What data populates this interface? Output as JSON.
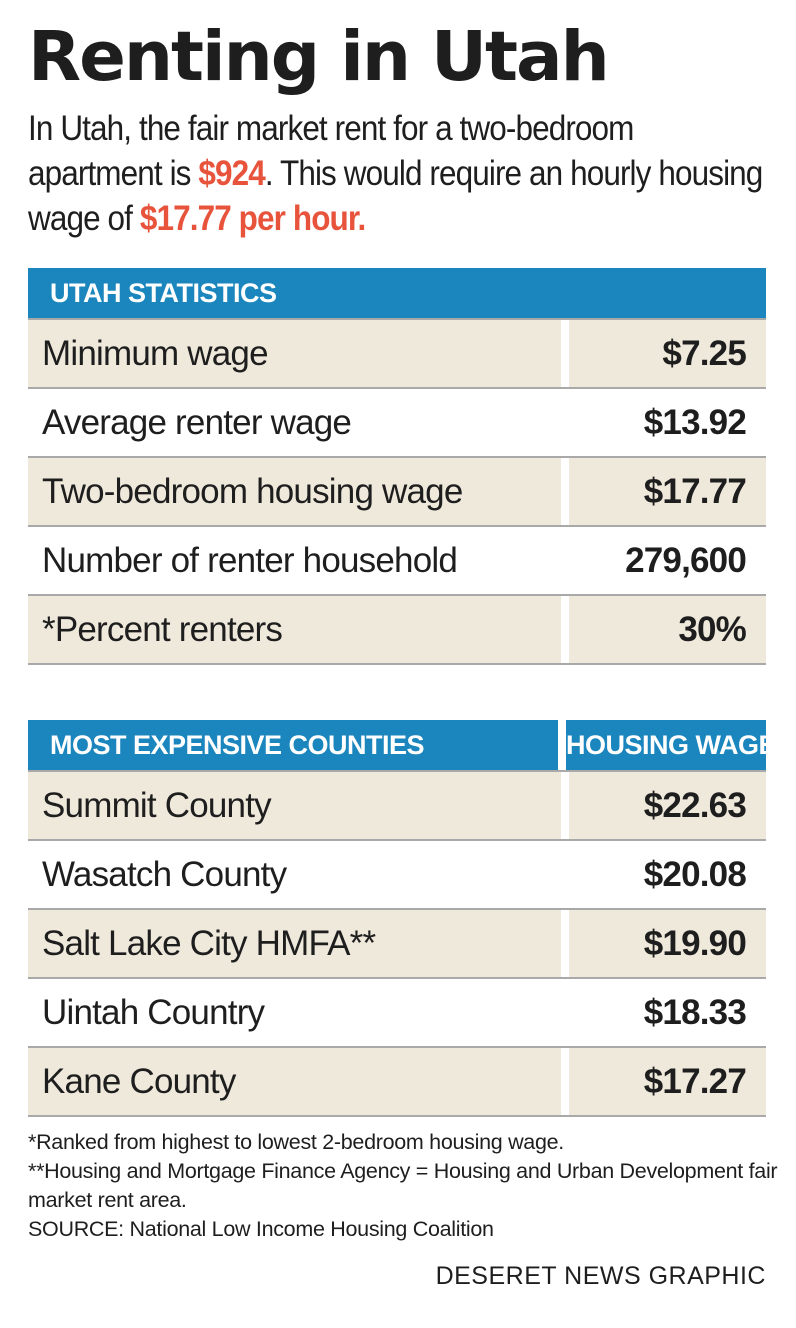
{
  "title": "Renting in Utah",
  "intro": {
    "part1": "In Utah, the fair market rent for a two-bedroom apartment is ",
    "rent": "$924",
    "part2": ". This would require an hourly housing wage of ",
    "wage": "$17.77 per hour."
  },
  "chart_data": [
    {
      "type": "table",
      "header": "UTAH STATISTICS",
      "rows": [
        {
          "label": "Minimum wage",
          "value": "$7.25"
        },
        {
          "label": "Average renter wage",
          "value": "$13.92"
        },
        {
          "label": "Two-bedroom housing wage",
          "value": "$17.77"
        },
        {
          "label": "Number of renter household",
          "value": "279,600"
        },
        {
          "label": "*Percent renters",
          "value": "30%"
        }
      ]
    },
    {
      "type": "table",
      "header": "MOST EXPENSIVE COUNTIES",
      "value_header": "HOUSING WAGE",
      "rows": [
        {
          "label": "Summit County",
          "value": "$22.63"
        },
        {
          "label": "Wasatch County",
          "value": "$20.08"
        },
        {
          "label": "Salt Lake City HMFA**",
          "value": "$19.90"
        },
        {
          "label": "Uintah Country",
          "value": "$18.33"
        },
        {
          "label": "Kane County",
          "value": "$17.27"
        }
      ]
    }
  ],
  "notes": [
    "*Ranked from highest to lowest 2-bedroom housing wage.",
    "**Housing and Mortgage Finance Agency = Housing and Urban Development fair market rent area.",
    "SOURCE: National Low Income Housing Coalition"
  ],
  "credit": "DESERET NEWS GRAPHIC",
  "colors": {
    "header": "#1a86bd",
    "highlight": "#e8533c",
    "shade": "#efe9dc"
  }
}
